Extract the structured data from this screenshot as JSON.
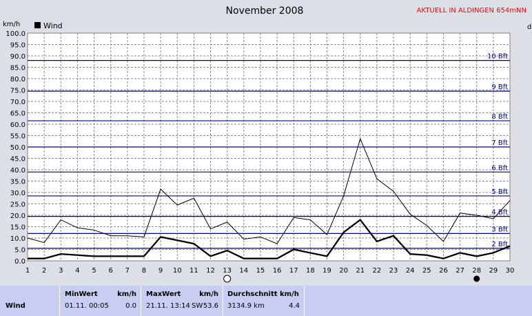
{
  "title": "November 2008",
  "station": "AKTUELL IN ALDINGEN 654mNN",
  "colors": {
    "accent": "#ff0000",
    "beaufort": "#000090",
    "background": "#dcdfe6",
    "table": "#c8cef2"
  },
  "chart_data": {
    "type": "line",
    "ylabel": "km/h",
    "right_label": "d",
    "ylim": [
      0,
      100
    ],
    "xlim": [
      1,
      30
    ],
    "y_ticks": [
      "0.0",
      "5.0",
      "10.0",
      "15.0",
      "20.0",
      "25.0",
      "30.0",
      "35.0",
      "40.0",
      "45.0",
      "50.0",
      "55.0",
      "60.0",
      "65.0",
      "70.0",
      "75.0",
      "80.0",
      "85.0",
      "90.0",
      "95.0",
      "100.0"
    ],
    "x_ticks": [
      "1",
      "2",
      "3",
      "4",
      "5",
      "6",
      "7",
      "8",
      "9",
      "10",
      "11",
      "12",
      "13",
      "14",
      "15",
      "16",
      "17",
      "18",
      "19",
      "20",
      "21",
      "22",
      "23",
      "24",
      "25",
      "26",
      "27",
      "28",
      "29",
      "30"
    ],
    "grid": true,
    "legend": {
      "label": "Wind",
      "position": "top-left"
    },
    "beaufort_lines": [
      {
        "label": "2 Bft",
        "value": 5.5
      },
      {
        "label": "3 Bft",
        "value": 12
      },
      {
        "label": "4 Bft",
        "value": 19.5
      },
      {
        "label": "5 Bft",
        "value": 28.5
      },
      {
        "label": "6 Bft",
        "value": 39
      },
      {
        "label": "7 Bft",
        "value": 50
      },
      {
        "label": "8 Bft",
        "value": 61.5
      },
      {
        "label": "9 Bft",
        "value": 74.5
      },
      {
        "label": "10 Bft",
        "value": 88
      }
    ],
    "x": [
      1,
      2,
      3,
      4,
      5,
      6,
      7,
      8,
      9,
      10,
      11,
      12,
      13,
      14,
      15,
      16,
      17,
      18,
      19,
      20,
      21,
      22,
      23,
      24,
      25,
      26,
      27,
      28,
      29,
      30
    ],
    "series": [
      {
        "name": "Wind",
        "values": [
          1,
          1,
          3,
          2.5,
          2,
          2,
          2,
          2,
          10.5,
          9,
          7.5,
          2,
          4.5,
          1,
          1,
          1,
          5,
          3.5,
          2,
          12.5,
          18,
          8.5,
          11,
          3,
          2.5,
          1,
          3.5,
          2,
          3.5,
          6.5
        ]
      },
      {
        "values": [
          10,
          8,
          18,
          14.5,
          13.5,
          11,
          11,
          10.5,
          31.5,
          24.5,
          27.5,
          14,
          17,
          9.5,
          10.5,
          7.5,
          19,
          18,
          11.5,
          28.5,
          53.6,
          36,
          30.5,
          20.5,
          15.5,
          8.5,
          21,
          20,
          18.5,
          26.5
        ]
      }
    ],
    "moon_phases": [
      {
        "day": 13,
        "phase": "full"
      },
      {
        "day": 28,
        "phase": "new"
      }
    ]
  },
  "stats": {
    "row_label": "Wind",
    "min": {
      "label": "MinWert",
      "unit": "km/h",
      "time": "01.11.  00:05",
      "value": "0.0"
    },
    "max": {
      "label": "MaxWert",
      "unit": "km/h",
      "time": "21.11.  13:14",
      "dir": "SW",
      "value": "53.6"
    },
    "avg": {
      "label": "Durchschnitt km/h",
      "distance": "3134.9 km",
      "value": "4.4"
    }
  }
}
